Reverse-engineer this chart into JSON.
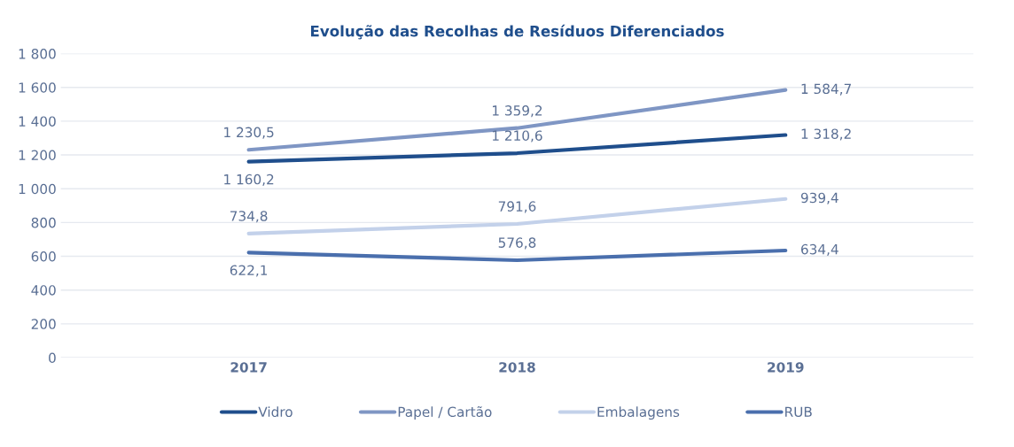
{
  "chart_data": {
    "type": "line",
    "title": "Evolução das Recolhas de Resíduos Diferenciados",
    "categories": [
      "2017",
      "2018",
      "2019"
    ],
    "series": [
      {
        "name": "Vidro",
        "color": "#1f4e8c",
        "values": [
          1160.2,
          1210.6,
          1318.2
        ],
        "value_labels": [
          "1 160,2",
          "1 210,6",
          "1 318,2"
        ]
      },
      {
        "name": "Papel / Cartão",
        "color": "#7f96c4",
        "values": [
          1230.5,
          1359.2,
          1584.7
        ],
        "value_labels": [
          "1 230,5",
          "1 359,2",
          "1 584,7"
        ]
      },
      {
        "name": "Embalagens",
        "color": "#c3d1ea",
        "values": [
          734.8,
          791.6,
          939.4
        ],
        "value_labels": [
          "734,8",
          "791,6",
          "939,4"
        ]
      },
      {
        "name": "RUB",
        "color": "#4a6fad",
        "values": [
          622.1,
          576.8,
          634.4
        ],
        "value_labels": [
          "622,1",
          "576,8",
          "634,4"
        ]
      }
    ],
    "ylim": [
      0,
      1800
    ],
    "yticks": [
      0,
      200,
      400,
      600,
      800,
      {
        "value": 1000,
        "label": "1 000"
      },
      {
        "value": 1200,
        "label": "1 200"
      },
      {
        "value": 1400,
        "label": "1 400"
      },
      {
        "value": 1600,
        "label": "1 600"
      },
      {
        "value": 1800,
        "label": "1 800"
      }
    ],
    "grid": "y",
    "legend": "bottom",
    "marker": "none",
    "line_style": "solid"
  }
}
